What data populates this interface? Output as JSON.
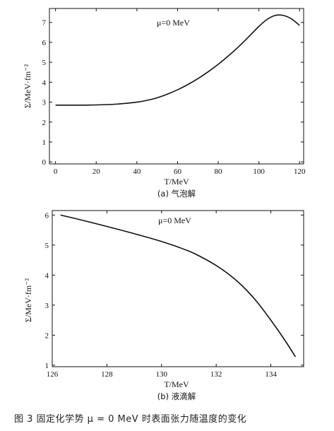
{
  "figure_caption": "图 3   固定化学势 μ = 0 MeV 时表面张力随温度的变化",
  "chart_data": [
    {
      "type": "line",
      "subtitle": "(a) 气泡解",
      "annotation": "μ=0 MeV",
      "xlabel": "T/MeV",
      "ylabel": "Σ/MeV·fm⁻²",
      "xlim": [
        -3,
        122
      ],
      "ylim": [
        -0.1,
        7.7
      ],
      "xticks": [
        0,
        20,
        40,
        60,
        80,
        100,
        120
      ],
      "yticks": [
        0,
        1,
        2,
        3,
        4,
        5,
        6,
        7
      ],
      "series": [
        {
          "x": [
            0,
            10,
            20,
            30,
            40,
            45,
            50,
            55,
            60,
            65,
            70,
            75,
            80,
            85,
            90,
            95,
            100,
            104,
            108,
            112,
            116,
            120
          ],
          "y": [
            2.85,
            2.85,
            2.86,
            2.9,
            3.0,
            3.09,
            3.22,
            3.4,
            3.62,
            3.88,
            4.18,
            4.52,
            4.9,
            5.32,
            5.78,
            6.28,
            6.8,
            7.15,
            7.35,
            7.35,
            7.18,
            6.85
          ]
        }
      ]
    },
    {
      "type": "line",
      "subtitle": "(b) 液滴解",
      "annotation": "μ=0 MeV",
      "xlabel": "T/MeV",
      "ylabel": "Σ/MeV·fm⁻²",
      "xlim": [
        126,
        135.2
      ],
      "ylim": [
        0.95,
        6.15
      ],
      "xticks": [
        126,
        128,
        130,
        132,
        134
      ],
      "yticks": [
        1,
        2,
        3,
        4,
        5,
        6
      ],
      "series": [
        {
          "x": [
            126.3,
            127,
            128,
            129,
            130,
            131,
            131.5,
            132,
            132.5,
            133,
            133.5,
            134,
            134.5,
            134.9
          ],
          "y": [
            6.0,
            5.85,
            5.62,
            5.38,
            5.12,
            4.8,
            4.58,
            4.32,
            4.0,
            3.6,
            3.1,
            2.5,
            1.85,
            1.28
          ]
        }
      ]
    }
  ]
}
